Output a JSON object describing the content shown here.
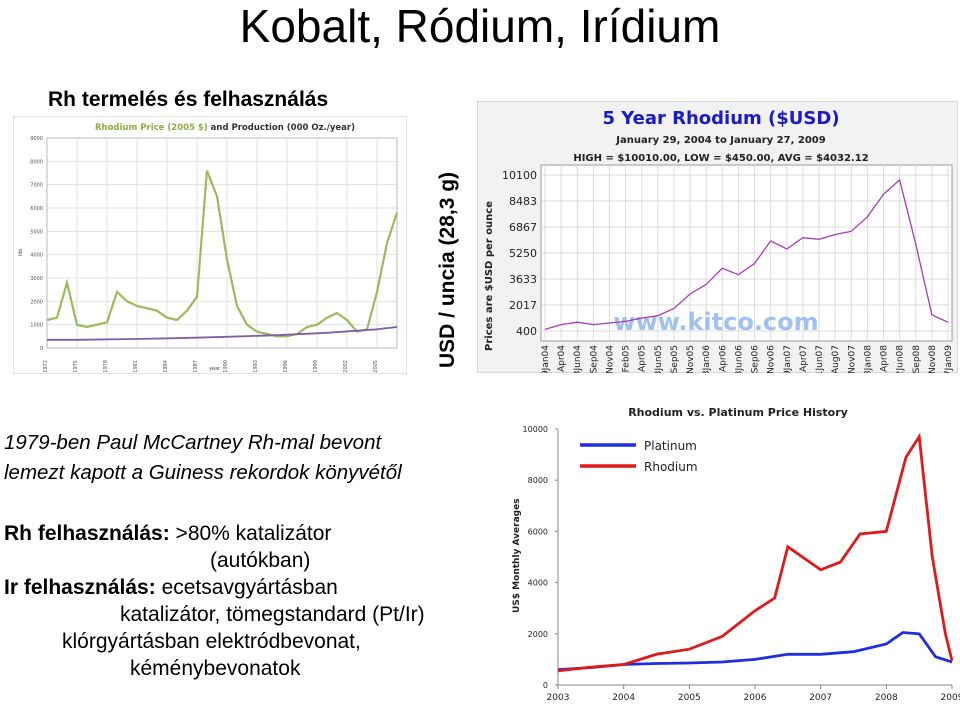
{
  "slide": {
    "title": "Kobalt, Ródium, Irídium",
    "rh_heading": "Rh termelés és felhasználás",
    "price_unit_label": "USD  / uncia (28,3 g)",
    "fact_line1": "1979-ben Paul McCartney Rh-mal bevont",
    "fact_line2": "lemezt kapott a Guiness rekordok könyvétől",
    "uses": {
      "rh_label": "Rh felhasználás:",
      "rh_text1": " >80% katalizátor",
      "rh_text2": "(autókban)",
      "ir_label": "Ir felhasználás:",
      "ir_text1": " ecetsavgyártásban",
      "ir_text2": "katalizátor, tömegstandard (Pt/Ir)",
      "ir_text3": "klórgyártásban elektródbevonat,",
      "ir_text4": "kéménybevonatok"
    }
  },
  "chart_data": [
    {
      "type": "line",
      "title": "Rhodium Price (2005 $) and Production (000 Oz./year)",
      "ylabel": "Idx",
      "xlabel": "year",
      "ylim": [
        0,
        9000
      ],
      "yticks": [
        "0",
        "1000",
        "2000",
        "3000",
        "4000",
        "5000",
        "6000",
        "7000",
        "8000",
        "9000"
      ],
      "xticks": [
        "1972",
        "1975",
        "1978",
        "1981",
        "1984",
        "1987",
        "1990",
        "1993",
        "1996",
        "1999",
        "2002",
        "2005"
      ],
      "series": [
        {
          "name": "Rhodium Price (2005 $)",
          "color": "#9cbb5a",
          "x": [
            1972,
            1973,
            1974,
            1975,
            1976,
            1977,
            1978,
            1979,
            1980,
            1981,
            1982,
            1983,
            1984,
            1985,
            1986,
            1987,
            1988,
            1989,
            1990,
            1991,
            1992,
            1993,
            1994,
            1995,
            1996,
            1997,
            1998,
            1999,
            2000,
            2001,
            2002,
            2003,
            2004,
            2005,
            2006,
            2007
          ],
          "y": [
            1200,
            1300,
            2800,
            1000,
            900,
            1000,
            1100,
            2400,
            2000,
            1800,
            1700,
            1600,
            1300,
            1200,
            1600,
            2200,
            7600,
            6500,
            3800,
            1800,
            1000,
            700,
            600,
            500,
            500,
            600,
            900,
            1000,
            1300,
            1500,
            1200,
            700,
            800,
            2400,
            4500,
            5800
          ]
        },
        {
          "name": "Production (000 Oz./year)",
          "color": "#7f5fa8",
          "x": [
            1972,
            1975,
            1980,
            1985,
            1990,
            1995,
            2000,
            2005,
            2007
          ],
          "y": [
            350,
            350,
            380,
            420,
            480,
            550,
            650,
            800,
            900
          ]
        }
      ]
    },
    {
      "type": "line",
      "title": "5 Year Rhodium ($USD)",
      "subtitle": "January 29, 2004 to January 27, 2009",
      "stats": "HIGH = $10010.00, LOW = $450.00, AVG = $4032.12",
      "ylabel": "Prices are $USD per ounce",
      "watermark": "www.kitco.com",
      "ylim": [
        400,
        10100
      ],
      "yticks": [
        "10100",
        "8483",
        "6867",
        "5250",
        "3633",
        "2017",
        "400"
      ],
      "xticks": [
        "29Jan04",
        "23Apr04",
        "23Jun04",
        "04Sep04",
        "16Nov04",
        "01Feb05",
        "11Apr05",
        "23Jun05",
        "01Sep05",
        "16Nov05",
        "28Jan06",
        "11Apr06",
        "23Jun06",
        "04Sep06",
        "16Nov06",
        "29Jan07",
        "11Apr07",
        "21Jun07",
        "30Aug07",
        "16Nov07",
        "28Jan08",
        "11Apr08",
        "22Jun08",
        "03Sep08",
        "15Nov08",
        "27Jan09"
      ],
      "series": [
        {
          "name": "Rhodium",
          "color": "#a83cb8",
          "x": [
            0,
            1,
            2,
            3,
            4,
            5,
            6,
            7,
            8,
            9,
            10,
            11,
            12,
            13,
            14,
            15,
            16,
            17,
            18,
            19,
            20,
            21,
            22,
            23,
            24,
            25
          ],
          "y": [
            500,
            800,
            950,
            800,
            900,
            1000,
            1200,
            1350,
            1800,
            2700,
            3300,
            4300,
            3900,
            4600,
            6000,
            5500,
            6200,
            6100,
            6400,
            6600,
            7500,
            8900,
            9800,
            5800,
            1400,
            950
          ]
        }
      ]
    },
    {
      "type": "line",
      "title": "Rhodium vs. Platinum Price History",
      "ylabel": "US$ Monthly Averages",
      "ylim": [
        0,
        10000
      ],
      "yticks": [
        "0",
        "2000",
        "4000",
        "6000",
        "8000",
        "10000"
      ],
      "xticks": [
        "2003",
        "2004",
        "2005",
        "2006",
        "2007",
        "2008",
        "2009"
      ],
      "series": [
        {
          "name": "Platinum",
          "color": "#1f2fe0",
          "x": [
            2003,
            2003.5,
            2004,
            2004.5,
            2005,
            2005.5,
            2006,
            2006.5,
            2007,
            2007.5,
            2008,
            2008.25,
            2008.5,
            2008.75,
            2009
          ],
          "y": [
            600,
            680,
            800,
            840,
            860,
            900,
            1000,
            1200,
            1200,
            1300,
            1600,
            2050,
            2000,
            1100,
            900
          ]
        },
        {
          "name": "Rhodium",
          "color": "#e01a1a",
          "x": [
            2003,
            2003.5,
            2004,
            2004.5,
            2005,
            2005.5,
            2006,
            2006.3,
            2006.5,
            2007,
            2007.3,
            2007.6,
            2008,
            2008.3,
            2008.5,
            2008.7,
            2008.9,
            2009
          ],
          "y": [
            550,
            700,
            800,
            1200,
            1400,
            1900,
            2900,
            3400,
            5400,
            4500,
            4800,
            5900,
            6000,
            8900,
            9700,
            5000,
            2000,
            950
          ]
        }
      ]
    }
  ]
}
